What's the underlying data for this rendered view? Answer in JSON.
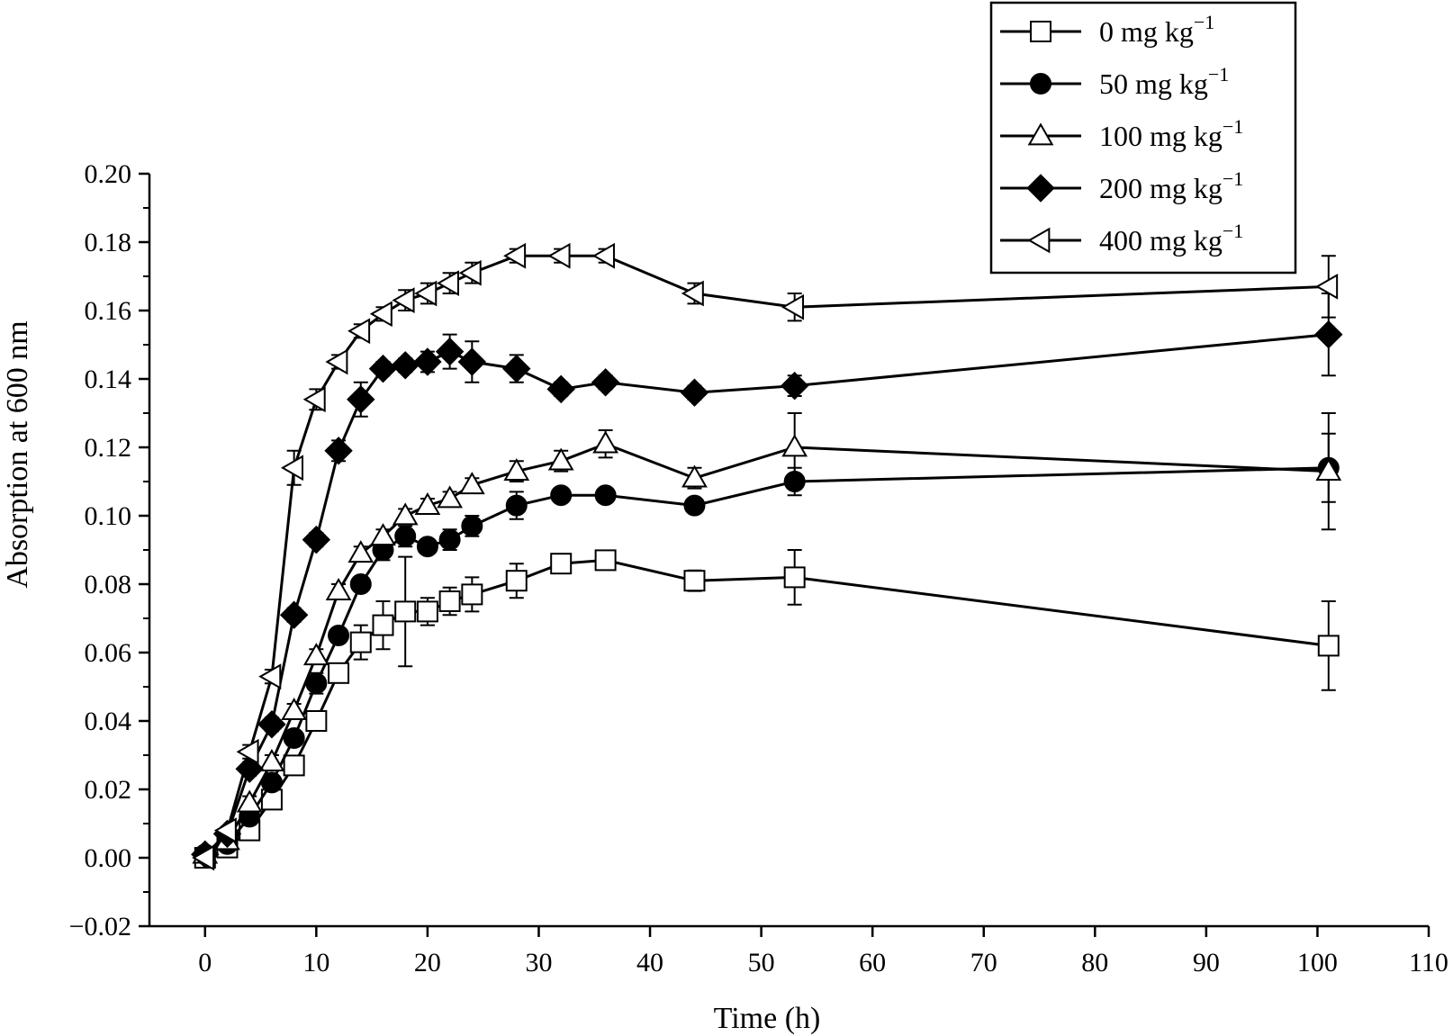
{
  "chart_data": {
    "type": "line",
    "title": "",
    "xlabel": "Time (h)",
    "ylabel": "Absorption at 600 nm",
    "xlim": [
      -5,
      110
    ],
    "ylim": [
      -0.02,
      0.2
    ],
    "xticks": [
      0,
      10,
      20,
      30,
      40,
      50,
      60,
      70,
      80,
      90,
      100,
      110
    ],
    "yticks": [
      -0.02,
      0.0,
      0.02,
      0.04,
      0.06,
      0.08,
      0.1,
      0.12,
      0.14,
      0.16,
      0.18,
      0.2
    ],
    "xtick_labels": [
      "0",
      "10",
      "20",
      "30",
      "40",
      "50",
      "60",
      "70",
      "80",
      "90",
      "100",
      "110"
    ],
    "ytick_labels": [
      "−0.02",
      "0.00",
      "0.02",
      "0.04",
      "0.06",
      "0.08",
      "0.10",
      "0.12",
      "0.14",
      "0.16",
      "0.18",
      "0.20"
    ],
    "grid": false,
    "legend_position": "top-right",
    "line_color": "#000000",
    "x": [
      0,
      2,
      4,
      6,
      8,
      10,
      12,
      14,
      16,
      18,
      20,
      22,
      24,
      28,
      32,
      36,
      44,
      53,
      101
    ],
    "series": [
      {
        "name": "0 mg kg",
        "unit_sup": "−1",
        "marker": "square-open",
        "values": [
          0.0,
          0.003,
          0.008,
          0.017,
          0.027,
          0.04,
          0.054,
          0.063,
          0.068,
          0.072,
          0.072,
          0.075,
          0.077,
          0.081,
          0.086,
          0.087,
          0.081,
          0.082,
          0.062
        ],
        "errors": [
          0.001,
          0.001,
          0.002,
          0.002,
          0.002,
          0.002,
          0.002,
          0.005,
          0.007,
          0.016,
          0.004,
          0.004,
          0.005,
          0.005,
          0.002,
          0.002,
          0.003,
          0.008,
          0.013
        ]
      },
      {
        "name": "50 mg kg",
        "unit_sup": "−1",
        "marker": "circle-filled",
        "values": [
          0.001,
          0.004,
          0.012,
          0.022,
          0.035,
          0.051,
          0.065,
          0.08,
          0.09,
          0.094,
          0.091,
          0.093,
          0.097,
          0.103,
          0.106,
          0.106,
          0.103,
          0.11,
          0.114
        ],
        "errors": [
          0.001,
          0.001,
          0.002,
          0.002,
          0.002,
          0.003,
          0.002,
          0.002,
          0.003,
          0.003,
          0.002,
          0.003,
          0.003,
          0.004,
          0.002,
          0.002,
          0.002,
          0.004,
          0.01
        ]
      },
      {
        "name": "100 mg kg",
        "unit_sup": "−1",
        "marker": "triangle-up-open",
        "values": [
          0.001,
          0.005,
          0.016,
          0.028,
          0.043,
          0.059,
          0.078,
          0.089,
          0.094,
          0.1,
          0.103,
          0.105,
          0.109,
          0.113,
          0.116,
          0.121,
          0.111,
          0.12,
          0.113
        ],
        "errors": [
          0.001,
          0.001,
          0.002,
          0.002,
          0.002,
          0.002,
          0.002,
          0.002,
          0.002,
          0.002,
          0.002,
          0.002,
          0.002,
          0.003,
          0.003,
          0.004,
          0.003,
          0.01,
          0.017
        ]
      },
      {
        "name": "200 mg kg",
        "unit_sup": "−1",
        "marker": "diamond-filled",
        "values": [
          0.001,
          0.007,
          0.026,
          0.039,
          0.071,
          0.093,
          0.119,
          0.134,
          0.143,
          0.144,
          0.145,
          0.148,
          0.145,
          0.143,
          0.137,
          0.139,
          0.136,
          0.138,
          0.153
        ],
        "errors": [
          0.001,
          0.001,
          0.002,
          0.002,
          0.002,
          0.002,
          0.003,
          0.005,
          0.002,
          0.002,
          0.003,
          0.005,
          0.006,
          0.004,
          0.002,
          0.002,
          0.002,
          0.003,
          0.012
        ]
      },
      {
        "name": "400 mg kg",
        "unit_sup": "−1",
        "marker": "triangle-left-open",
        "values": [
          0.0,
          0.008,
          0.031,
          0.053,
          0.114,
          0.134,
          0.145,
          0.154,
          0.159,
          0.163,
          0.165,
          0.168,
          0.171,
          0.176,
          0.176,
          0.176,
          0.165,
          0.161,
          0.167
        ],
        "errors": [
          0.001,
          0.001,
          0.002,
          0.002,
          0.005,
          0.003,
          0.002,
          0.002,
          0.002,
          0.003,
          0.003,
          0.003,
          0.003,
          0.002,
          0.002,
          0.002,
          0.003,
          0.004,
          0.009
        ]
      }
    ]
  }
}
